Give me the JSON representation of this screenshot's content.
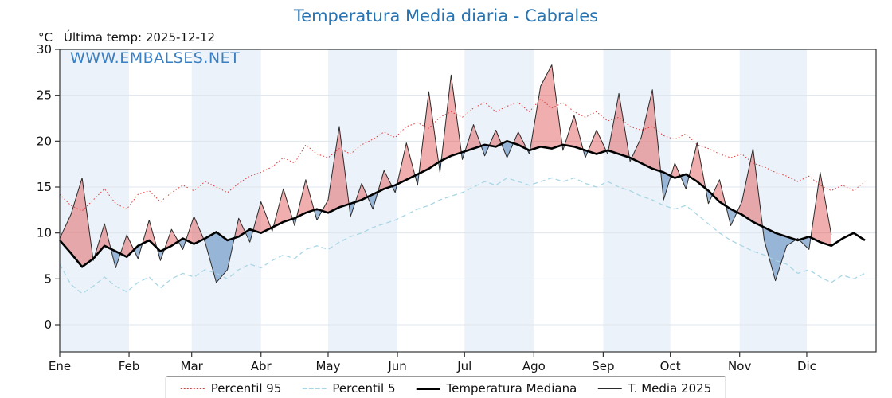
{
  "title": "Temperatura Media diaria - Cabrales",
  "watermark": "WWW.EMBALSES.NET",
  "y_unit": "°C",
  "annotation": "Última temp: 2025-12-12",
  "legend": [
    {
      "label": "Percentil 95"
    },
    {
      "label": "Percentil 5"
    },
    {
      "label": "Temperatura Mediana"
    },
    {
      "label": "T. Media 2025"
    }
  ],
  "chart_data": {
    "type": "line",
    "title": "Temperatura Media diaria - Cabrales",
    "xlabel": "",
    "ylabel": "°C",
    "ylim": [
      -3,
      30
    ],
    "y_ticks": [
      0,
      5,
      10,
      15,
      20,
      25,
      30
    ],
    "x_months": [
      "Ene",
      "Feb",
      "Mar",
      "Abr",
      "May",
      "Jun",
      "Jul",
      "Ago",
      "Sep",
      "Oct",
      "Nov",
      "Dic"
    ],
    "month_start_days": [
      0,
      31,
      59,
      90,
      120,
      151,
      181,
      212,
      243,
      273,
      304,
      334
    ],
    "days_in_year": 365,
    "sample_step_days": 5,
    "grid": true,
    "legend_position": "bottom",
    "band_color": "#ecf2f9",
    "fill_above_color": "rgba(225,75,75,0.45)",
    "fill_below_color": "rgba(95,140,190,0.60)",
    "series": [
      {
        "name": "Percentil 95",
        "color": "#e03a3a",
        "style": "dotted",
        "values": [
          14.2,
          13.0,
          12.4,
          13.6,
          14.8,
          13.2,
          12.6,
          14.2,
          14.6,
          13.4,
          14.4,
          15.2,
          14.6,
          15.6,
          15.0,
          14.4,
          15.4,
          16.2,
          16.6,
          17.2,
          18.2,
          17.6,
          19.6,
          18.6,
          18.2,
          19.2,
          18.6,
          19.6,
          20.2,
          21.0,
          20.4,
          21.6,
          22.0,
          21.4,
          22.6,
          23.2,
          22.6,
          23.6,
          24.2,
          23.2,
          23.8,
          24.2,
          23.2,
          24.6,
          23.6,
          24.2,
          23.2,
          22.6,
          23.2,
          22.2,
          22.6,
          21.6,
          21.2,
          21.6,
          20.6,
          20.2,
          20.8,
          19.6,
          19.2,
          18.6,
          18.2,
          18.6,
          17.6,
          17.2,
          16.6,
          16.2,
          15.6,
          16.2,
          15.2,
          14.6,
          15.2,
          14.6,
          15.6
        ]
      },
      {
        "name": "Percentil 5",
        "color": "#a9d6e5",
        "style": "dashed",
        "values": [
          6.6,
          4.4,
          3.4,
          4.2,
          5.2,
          4.2,
          3.6,
          4.6,
          5.2,
          4.0,
          5.0,
          5.6,
          5.2,
          6.0,
          5.6,
          5.0,
          6.0,
          6.6,
          6.2,
          7.0,
          7.6,
          7.2,
          8.2,
          8.6,
          8.2,
          9.0,
          9.6,
          10.0,
          10.6,
          11.0,
          11.4,
          12.0,
          12.6,
          13.0,
          13.6,
          14.0,
          14.4,
          15.0,
          15.6,
          15.2,
          16.0,
          15.6,
          15.2,
          15.6,
          16.0,
          15.6,
          16.0,
          15.4,
          15.0,
          15.6,
          15.0,
          14.6,
          14.0,
          13.6,
          13.0,
          12.6,
          13.0,
          12.0,
          11.0,
          10.0,
          9.2,
          8.6,
          8.0,
          7.6,
          7.0,
          6.6,
          5.6,
          6.0,
          5.2,
          4.6,
          5.4,
          5.0,
          5.6
        ]
      },
      {
        "name": "Temperatura Mediana",
        "color": "#000000",
        "style": "solid-thick",
        "values": [
          9.2,
          7.8,
          6.3,
          7.2,
          8.6,
          8.0,
          7.4,
          8.6,
          9.2,
          8.0,
          8.6,
          9.4,
          8.8,
          9.4,
          10.1,
          9.2,
          9.6,
          10.4,
          10.0,
          10.6,
          11.2,
          11.6,
          12.2,
          12.6,
          12.2,
          12.8,
          13.2,
          13.6,
          14.2,
          14.8,
          15.2,
          15.8,
          16.4,
          17.0,
          17.8,
          18.4,
          18.8,
          19.2,
          19.6,
          19.4,
          20.0,
          19.6,
          19.0,
          19.4,
          19.2,
          19.6,
          19.4,
          19.0,
          18.6,
          19.0,
          18.6,
          18.2,
          17.6,
          17.0,
          16.6,
          16.0,
          16.4,
          15.6,
          14.6,
          13.4,
          12.6,
          12.0,
          11.2,
          10.6,
          10.0,
          9.6,
          9.2,
          9.6,
          9.0,
          8.6,
          9.4,
          10.0,
          9.2
        ]
      },
      {
        "name": "T. Media 2025",
        "color": "#2b2b2b",
        "style": "solid-thin",
        "values": [
          9.4,
          12.0,
          16.0,
          7.0,
          11.0,
          6.2,
          9.8,
          7.2,
          11.4,
          7.0,
          10.4,
          8.2,
          11.8,
          9.0,
          4.6,
          6.0,
          11.6,
          9.0,
          13.4,
          10.2,
          14.8,
          10.8,
          15.8,
          11.4,
          13.6,
          21.6,
          11.8,
          15.4,
          12.6,
          16.8,
          14.4,
          19.8,
          15.2,
          25.4,
          16.6,
          27.2,
          18.0,
          21.8,
          18.4,
          21.2,
          18.2,
          21.0,
          18.6,
          26.0,
          28.3,
          19.0,
          22.8,
          18.2,
          21.2,
          18.6,
          25.2,
          17.8,
          20.4,
          25.6,
          13.6,
          17.6,
          14.8,
          19.8,
          13.2,
          15.8,
          10.8,
          13.4,
          19.2,
          9.2,
          4.8,
          8.6,
          9.4,
          8.2,
          16.6,
          9.8
        ]
      }
    ]
  }
}
